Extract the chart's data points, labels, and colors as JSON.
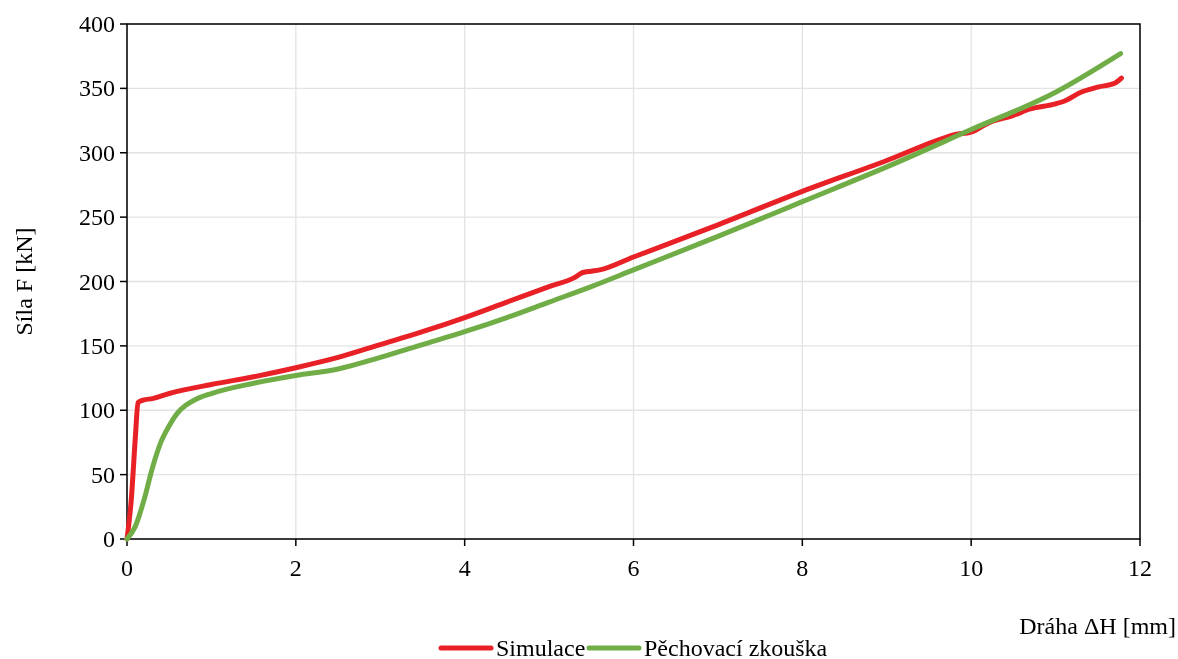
{
  "chart_data": {
    "type": "line",
    "xlabel": "Dráha ΔH [mm]",
    "ylabel": "Síla F [kN]",
    "xlim": [
      0,
      12
    ],
    "ylim": [
      0,
      400
    ],
    "xticks": [
      0,
      2,
      4,
      6,
      8,
      10,
      12
    ],
    "yticks": [
      0,
      50,
      100,
      150,
      200,
      250,
      300,
      350,
      400
    ],
    "grid": true,
    "legend": "bottom",
    "marker": "none",
    "line_style": "solid",
    "series": [
      {
        "name": "Simulace",
        "color": "#e82127",
        "x": [
          0,
          0.05,
          0.1,
          0.13,
          0.2,
          0.3,
          0.5,
          1,
          1.5,
          2,
          2.5,
          3,
          3.5,
          4,
          4.5,
          5,
          5.3,
          5.4,
          5.5,
          5.6,
          6,
          7,
          8,
          9,
          9.7,
          9.8,
          10,
          10.2,
          10.5,
          10.7,
          11,
          11.1,
          11.3,
          11.5,
          11.7,
          11.78
        ],
        "values": [
          0,
          30,
          80,
          106,
          108,
          109,
          113,
          120,
          126,
          133,
          141,
          151,
          161,
          172,
          184,
          196,
          203,
          207,
          208,
          209,
          219,
          244,
          270,
          294,
          312,
          314,
          316,
          323,
          329,
          334,
          338,
          340,
          347,
          351,
          354,
          358
        ]
      },
      {
        "name": "Pěchovací zkouška",
        "color": "#70ad47",
        "x": [
          0,
          0.1,
          0.2,
          0.3,
          0.4,
          0.5,
          0.6,
          0.7,
          0.8,
          1,
          1.5,
          2,
          2.5,
          3,
          3.5,
          4,
          4.5,
          5,
          5.5,
          6,
          7,
          8,
          9,
          10,
          11,
          11.77
        ],
        "values": [
          0,
          10,
          30,
          55,
          75,
          88,
          98,
          104,
          108,
          113,
          121,
          127,
          132,
          141,
          151,
          161,
          172,
          184,
          196,
          209,
          235,
          262,
          289,
          318,
          347,
          377
        ]
      }
    ]
  }
}
